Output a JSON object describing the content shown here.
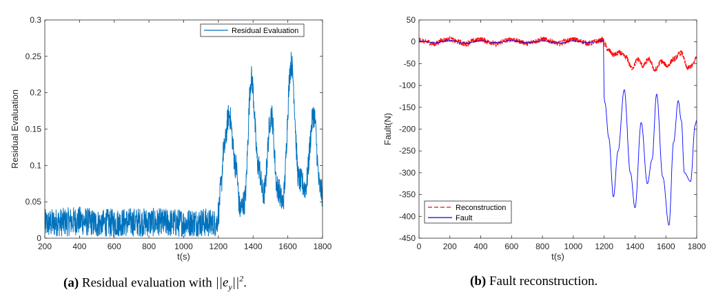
{
  "figures": [
    {
      "label": "(a)",
      "caption_text": "Residual evaluation with",
      "caption_norm": "||e",
      "caption_sub": "y",
      "caption_tail": "||",
      "caption_sup": "2",
      "caption_end": "."
    },
    {
      "label": "(b)",
      "caption_text": "Fault reconstruction."
    }
  ],
  "colors": {
    "blue": "#0072BD",
    "red": "#ff0000",
    "navy": "#0000ff",
    "axis": "#262626",
    "grid_text": "#262626"
  },
  "chart_data": [
    {
      "type": "line",
      "title": "",
      "xlabel": "t(s)",
      "ylabel": "Residual Evaluation",
      "xlim": [
        200,
        1800
      ],
      "ylim": [
        0,
        0.3
      ],
      "xticks": [
        200,
        400,
        600,
        800,
        1000,
        1200,
        1400,
        1600,
        1800
      ],
      "yticks": [
        0,
        0.05,
        0.1,
        0.15,
        0.2,
        0.25,
        0.3
      ],
      "yticklabels": [
        "0",
        "0.05",
        "0.1",
        "0.15",
        "0.2",
        "0.25",
        "0.3"
      ],
      "legend": {
        "position": "top-right",
        "entries": [
          "Residual Evaluation"
        ]
      },
      "series": [
        {
          "name": "Residual Evaluation",
          "style": "solid",
          "color": "#0072BD",
          "noise_band": 0.04,
          "x": [
            200,
            300,
            400,
            500,
            600,
            700,
            800,
            900,
            1000,
            1100,
            1190,
            1200,
            1215,
            1230,
            1262,
            1300,
            1325,
            1350,
            1390,
            1430,
            1460,
            1505,
            1540,
            1570,
            1620,
            1665,
            1700,
            1750,
            1785,
            1800
          ],
          "values": [
            0.02,
            0.022,
            0.024,
            0.02,
            0.021,
            0.022,
            0.022,
            0.021,
            0.021,
            0.022,
            0.02,
            0.035,
            0.07,
            0.12,
            0.17,
            0.1,
            0.04,
            0.05,
            0.22,
            0.1,
            0.06,
            0.17,
            0.07,
            0.05,
            0.24,
            0.08,
            0.07,
            0.17,
            0.07,
            0.06
          ]
        }
      ]
    },
    {
      "type": "line",
      "title": "",
      "xlabel": "t(s)",
      "ylabel": "Fault(N)",
      "xlim": [
        0,
        1800
      ],
      "ylim": [
        -450,
        50
      ],
      "xticks": [
        0,
        200,
        400,
        600,
        800,
        1000,
        1200,
        1400,
        1600,
        1800
      ],
      "yticks": [
        -450,
        -400,
        -350,
        -300,
        -250,
        -200,
        -150,
        -100,
        -50,
        0,
        50
      ],
      "yticklabels": [
        "-450",
        "-400",
        "-350",
        "-300",
        "-250",
        "-200",
        "-150",
        "-100",
        "-50",
        "0",
        "50"
      ],
      "legend": {
        "position": "bottom-left",
        "entries": [
          "Reconstruction",
          "Fault"
        ]
      },
      "series": [
        {
          "name": "Reconstruction",
          "style": "dashed",
          "color": "#ff0000",
          "noise_band": 6,
          "x": [
            0,
            50,
            100,
            150,
            200,
            250,
            300,
            350,
            400,
            450,
            500,
            550,
            600,
            650,
            700,
            750,
            800,
            850,
            900,
            950,
            1000,
            1050,
            1100,
            1150,
            1195,
            1200,
            1230,
            1260,
            1300,
            1340,
            1380,
            1420,
            1450,
            1490,
            1530,
            1570,
            1610,
            1650,
            1700,
            1740,
            1770,
            1800
          ],
          "values": [
            4,
            0,
            -5,
            3,
            6,
            0,
            -5,
            2,
            6,
            0,
            -5,
            2,
            6,
            1,
            -4,
            1,
            6,
            2,
            -4,
            1,
            6,
            1,
            -4,
            1,
            5,
            -5,
            -20,
            -30,
            -25,
            -35,
            -60,
            -40,
            -55,
            -40,
            -65,
            -45,
            -55,
            -40,
            -25,
            -60,
            -55,
            -35
          ]
        },
        {
          "name": "Fault",
          "style": "solid",
          "color": "#0000ff",
          "noise_band": 0,
          "x": [
            0,
            100,
            200,
            300,
            400,
            500,
            600,
            700,
            800,
            900,
            1000,
            1100,
            1195,
            1200,
            1205,
            1230,
            1260,
            1290,
            1330,
            1370,
            1400,
            1440,
            1480,
            1510,
            1540,
            1580,
            1620,
            1650,
            1680,
            1700,
            1720,
            1760,
            1790,
            1800
          ],
          "values": [
            2,
            -2,
            3,
            -3,
            2,
            -2,
            3,
            -2,
            2,
            -3,
            2,
            -2,
            2,
            -130,
            -140,
            -220,
            -355,
            -250,
            -110,
            -300,
            -380,
            -185,
            -325,
            -270,
            -120,
            -310,
            -420,
            -230,
            -135,
            -180,
            -300,
            -320,
            -190,
            -180
          ]
        }
      ]
    }
  ]
}
